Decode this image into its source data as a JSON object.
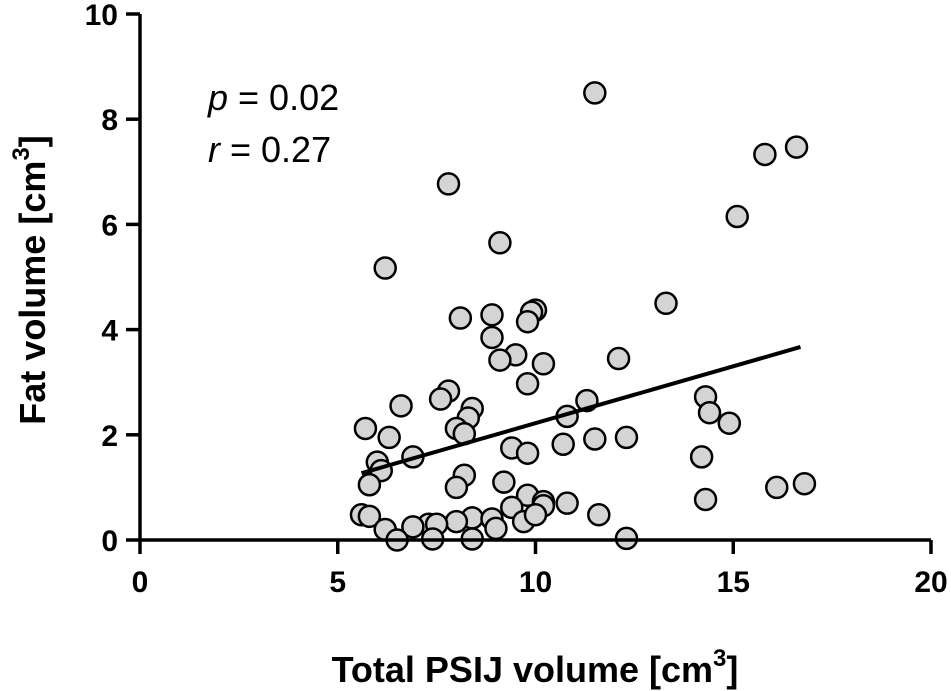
{
  "chart_data": {
    "type": "scatter",
    "title": "",
    "xlabel": "Total PSIJ volume [cm",
    "xlabel_sup": "3",
    "xlabel_close": "]",
    "ylabel": "Fat volume [cm",
    "ylabel_sup": "3",
    "ylabel_close": "]",
    "xlim": [
      0,
      20
    ],
    "ylim": [
      0,
      10
    ],
    "xticks": [
      0,
      5,
      10,
      15,
      20
    ],
    "xtick_labels": [
      "0",
      "5",
      "10",
      "15",
      "20"
    ],
    "yticks": [
      0,
      2,
      4,
      6,
      8,
      10
    ],
    "ytick_labels": [
      "0",
      "2",
      "4",
      "6",
      "8",
      "10"
    ],
    "grid": false,
    "annotations": {
      "p_symbol": "p",
      "p_text": " = 0.02",
      "r_symbol": "r",
      "r_text": " = 0.27"
    },
    "regression_line": {
      "x": [
        5.6,
        16.7
      ],
      "y": [
        1.27,
        3.67
      ]
    },
    "point_color": "#d4d4d4",
    "points": [
      [
        11.5,
        8.5
      ],
      [
        16.6,
        7.47
      ],
      [
        15.8,
        7.33
      ],
      [
        7.8,
        6.77
      ],
      [
        15.1,
        6.15
      ],
      [
        9.1,
        5.65
      ],
      [
        6.2,
        5.17
      ],
      [
        13.3,
        4.5
      ],
      [
        10.0,
        4.37
      ],
      [
        9.9,
        4.33
      ],
      [
        8.9,
        4.28
      ],
      [
        8.1,
        4.22
      ],
      [
        9.8,
        4.15
      ],
      [
        8.9,
        3.85
      ],
      [
        9.5,
        3.52
      ],
      [
        12.1,
        3.45
      ],
      [
        9.1,
        3.42
      ],
      [
        10.2,
        3.35
      ],
      [
        9.8,
        2.97
      ],
      [
        7.8,
        2.83
      ],
      [
        7.6,
        2.68
      ],
      [
        14.3,
        2.72
      ],
      [
        11.3,
        2.65
      ],
      [
        6.6,
        2.55
      ],
      [
        8.4,
        2.5
      ],
      [
        14.4,
        2.42
      ],
      [
        10.8,
        2.35
      ],
      [
        8.3,
        2.32
      ],
      [
        14.9,
        2.22
      ],
      [
        5.7,
        2.12
      ],
      [
        8.0,
        2.12
      ],
      [
        8.2,
        2.02
      ],
      [
        12.3,
        1.95
      ],
      [
        6.3,
        1.95
      ],
      [
        11.5,
        1.92
      ],
      [
        10.7,
        1.82
      ],
      [
        9.4,
        1.75
      ],
      [
        9.8,
        1.65
      ],
      [
        6.9,
        1.58
      ],
      [
        14.2,
        1.58
      ],
      [
        6.0,
        1.48
      ],
      [
        6.1,
        1.32
      ],
      [
        8.2,
        1.23
      ],
      [
        9.2,
        1.1
      ],
      [
        5.8,
        1.05
      ],
      [
        16.8,
        1.07
      ],
      [
        16.1,
        1.0
      ],
      [
        8.0,
        1.0
      ],
      [
        9.8,
        0.85
      ],
      [
        14.3,
        0.77
      ],
      [
        10.2,
        0.73
      ],
      [
        10.8,
        0.7
      ],
      [
        10.2,
        0.65
      ],
      [
        9.4,
        0.62
      ],
      [
        5.6,
        0.48
      ],
      [
        5.8,
        0.45
      ],
      [
        11.6,
        0.48
      ],
      [
        8.4,
        0.42
      ],
      [
        8.9,
        0.4
      ],
      [
        9.7,
        0.35
      ],
      [
        8.0,
        0.35
      ],
      [
        7.3,
        0.3
      ],
      [
        7.5,
        0.3
      ],
      [
        10.0,
        0.48
      ],
      [
        6.9,
        0.25
      ],
      [
        6.2,
        0.2
      ],
      [
        9.0,
        0.22
      ],
      [
        6.5,
        0.0
      ],
      [
        7.4,
        0.02
      ],
      [
        8.4,
        0.02
      ],
      [
        12.3,
        0.03
      ]
    ]
  }
}
